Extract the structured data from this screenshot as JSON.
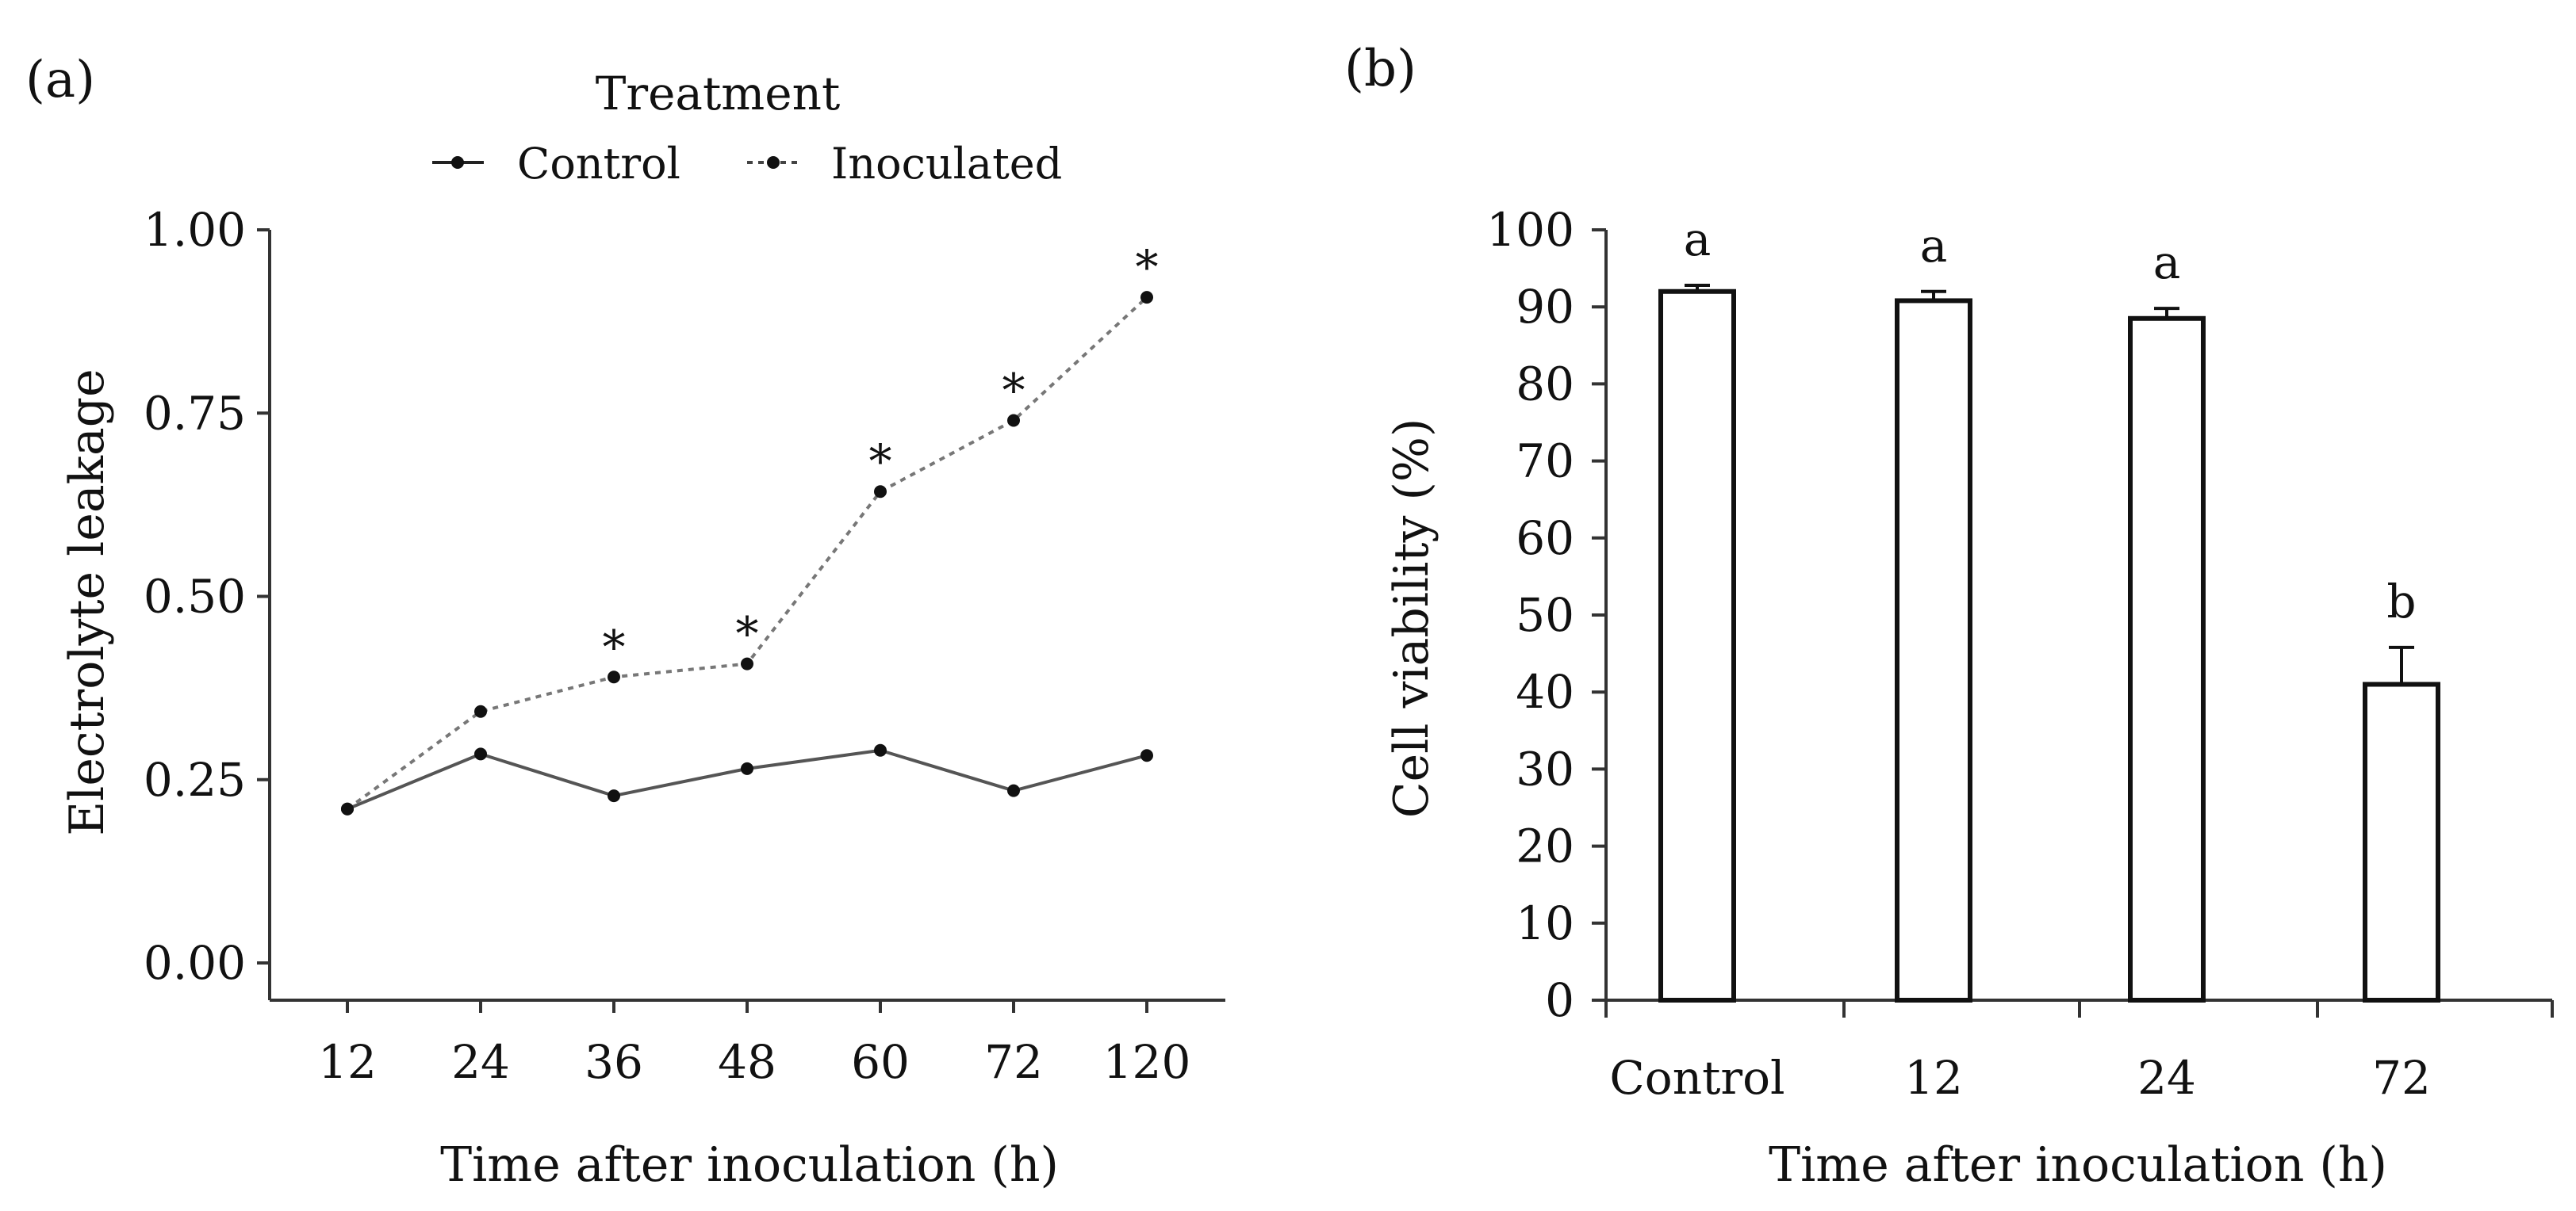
{
  "panel_a_label": "(a)",
  "panel_b_label": "(b)",
  "chart_data": [
    {
      "type": "line",
      "title": "",
      "legend_title": "Treatment",
      "legend_position": "top",
      "xlabel": "Time after inoculation (h)",
      "ylabel": "Electrolyte leakage",
      "categories": [
        "12",
        "24",
        "36",
        "48",
        "60",
        "72",
        "120"
      ],
      "ylim": [
        0,
        1.0
      ],
      "yticks": [
        0.0,
        0.25,
        0.5,
        0.75,
        1.0
      ],
      "ytick_labels": [
        "0.00",
        "0.25",
        "0.50",
        "0.75",
        "1.00"
      ],
      "grid": false,
      "series": [
        {
          "name": "Control",
          "style": "solid",
          "color": "#555555",
          "values": [
            0.21,
            0.285,
            0.228,
            0.265,
            0.29,
            0.235,
            0.283
          ]
        },
        {
          "name": "Inoculated",
          "style": "dotted",
          "color": "#777777",
          "values": [
            0.21,
            0.343,
            0.39,
            0.408,
            0.643,
            0.74,
            0.908
          ]
        }
      ],
      "annotations": [
        "",
        "",
        "*",
        "*",
        "*",
        "*",
        "*"
      ]
    },
    {
      "type": "bar",
      "title": "",
      "xlabel": "Time after inoculation (h)",
      "ylabel": "Cell viability (%)",
      "categories": [
        "Control",
        "12",
        "24",
        "72"
      ],
      "values": [
        92,
        90.8,
        88.5,
        41
      ],
      "errors": [
        0.8,
        1.2,
        1.3,
        4.8
      ],
      "letters": [
        "a",
        "a",
        "a",
        "b"
      ],
      "ylim": [
        0,
        100
      ],
      "yticks": [
        0,
        10,
        20,
        30,
        40,
        50,
        60,
        70,
        80,
        90,
        100
      ],
      "ytick_labels": [
        "0",
        "10",
        "20",
        "30",
        "40",
        "50",
        "60",
        "70",
        "80",
        "90",
        "100"
      ],
      "grid": false
    }
  ]
}
